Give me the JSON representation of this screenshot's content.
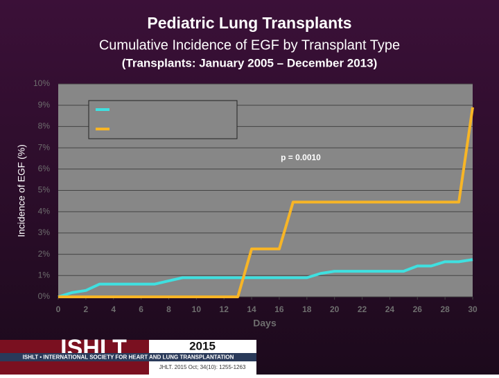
{
  "chart_data": {
    "type": "line",
    "title": "Pediatric Lung Transplants",
    "subtitle": "Cumulative Incidence of EGF by Transplant Type",
    "subtitle2": "(Transplants: January 2005 – December 2013)",
    "x_label": "Days",
    "y_label": "Incidence of EGF (%)",
    "annotation": "p = 0.0010",
    "series": [
      {
        "color": "#3fe0e0",
        "x": [
          0,
          1,
          2,
          3,
          7,
          8,
          9,
          18,
          19,
          20,
          25,
          26,
          27,
          28,
          29,
          30
        ],
        "values": [
          0,
          0.2,
          0.3,
          0.6,
          0.6,
          0.75,
          0.9,
          0.9,
          1.1,
          1.2,
          1.2,
          1.45,
          1.45,
          1.65,
          1.65,
          1.75
        ]
      },
      {
        "color": "#f7b526",
        "x": [
          0,
          13,
          14,
          16,
          17,
          29,
          30
        ],
        "values": [
          0,
          0,
          2.25,
          2.25,
          4.45,
          4.45,
          8.9
        ]
      }
    ],
    "xlim": [
      0,
      30
    ],
    "xticks": [
      0,
      2,
      4,
      6,
      8,
      10,
      12,
      14,
      16,
      18,
      20,
      22,
      24,
      26,
      28,
      30
    ],
    "ylim": [
      0,
      10
    ],
    "yticks": [
      {
        "value": 0,
        "label": "0%"
      },
      {
        "value": 1,
        "label": "1%"
      },
      {
        "value": 2,
        "label": "2%"
      },
      {
        "value": 3,
        "label": "3%"
      },
      {
        "value": 4,
        "label": "4%"
      },
      {
        "value": 5,
        "label": "5%"
      },
      {
        "value": 6,
        "label": "6%"
      },
      {
        "value": 7,
        "label": "7%"
      },
      {
        "value": 8,
        "label": "8%"
      },
      {
        "value": 9,
        "label": "9%"
      },
      {
        "value": 10,
        "label": "10%"
      }
    ],
    "grid": true
  },
  "footer": {
    "logo": "ISHLT",
    "society": "ISHLT • INTERNATIONAL SOCIETY FOR HEART AND LUNG TRANSPLANTATION",
    "year": "2015",
    "citation": "JHLT. 2015 Oct; 34(10): 1255-1263"
  }
}
